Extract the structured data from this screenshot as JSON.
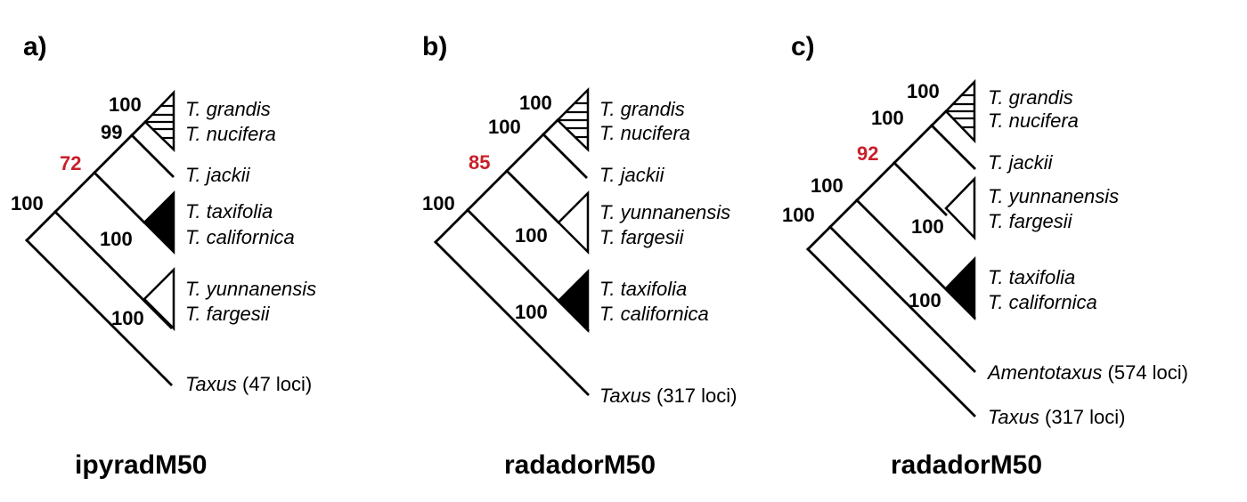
{
  "panels": [
    {
      "label": "a)",
      "caption": "ipyradM50",
      "supports": [
        "100",
        "99",
        "72",
        "100",
        "100",
        "100"
      ],
      "taxa": [
        {
          "italic": "T. grandis",
          "plain": ""
        },
        {
          "italic": "T. nucifera",
          "plain": ""
        },
        {
          "italic": "T. jackii",
          "plain": ""
        },
        {
          "italic": "T. taxifolia",
          "plain": ""
        },
        {
          "italic": "T. californica",
          "plain": ""
        },
        {
          "italic": "T. yunnanensis",
          "plain": ""
        },
        {
          "italic": "T. fargesii",
          "plain": ""
        },
        {
          "italic": "Taxus",
          "plain": " (47 loci)"
        }
      ]
    },
    {
      "label": "b)",
      "caption": "radadorM50",
      "supports": [
        "100",
        "100",
        "85",
        "100",
        "100",
        "100"
      ],
      "taxa": [
        {
          "italic": "T. grandis",
          "plain": ""
        },
        {
          "italic": "T. nucifera",
          "plain": ""
        },
        {
          "italic": "T. jackii",
          "plain": ""
        },
        {
          "italic": "T. yunnanensis",
          "plain": ""
        },
        {
          "italic": "T. fargesii",
          "plain": ""
        },
        {
          "italic": "T. taxifolia",
          "plain": ""
        },
        {
          "italic": "T. californica",
          "plain": ""
        },
        {
          "italic": "Taxus",
          "plain": " (317 loci)"
        }
      ]
    },
    {
      "label": "c)",
      "caption": "radadorM50",
      "supports": [
        "100",
        "100",
        "92",
        "100",
        "100",
        "100",
        "100"
      ],
      "taxa": [
        {
          "italic": "T. grandis",
          "plain": ""
        },
        {
          "italic": "T. nucifera",
          "plain": ""
        },
        {
          "italic": "T. jackii",
          "plain": ""
        },
        {
          "italic": "T. yunnanensis",
          "plain": ""
        },
        {
          "italic": "T. fargesii",
          "plain": ""
        },
        {
          "italic": "T. taxifolia",
          "plain": ""
        },
        {
          "italic": "T. californica",
          "plain": ""
        },
        {
          "italic": "Amentotaxus",
          "plain": " (574 loci)"
        },
        {
          "italic": "Taxus",
          "plain": " (317 loci)"
        }
      ]
    }
  ]
}
